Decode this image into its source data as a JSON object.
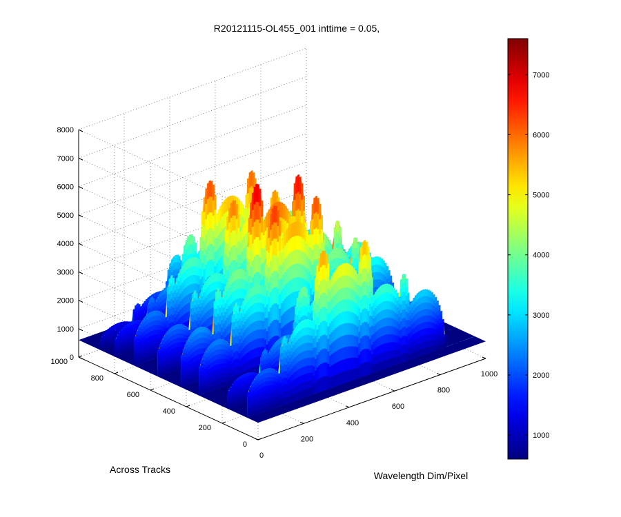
{
  "chart_data": {
    "type": "surface",
    "title": "R20121115-OL455_001 inttime = 0.05,",
    "xlabel": "Wavelength Dim/Pixel",
    "ylabel": "Across Tracks",
    "zlabel": "",
    "xlim": [
      0,
      1000
    ],
    "ylim": [
      0,
      1000
    ],
    "zlim": [
      0,
      8000
    ],
    "x_ticks": [
      "0",
      "200",
      "400",
      "600",
      "800",
      "1000"
    ],
    "y_ticks": [
      "0",
      "200",
      "400",
      "600",
      "800",
      "1000"
    ],
    "z_ticks": [
      "0",
      "1000",
      "2000",
      "3000",
      "4000",
      "5000",
      "6000",
      "7000",
      "8000"
    ],
    "colorbar": {
      "colormap": "jet",
      "range": [
        600,
        7600
      ],
      "ticks": [
        "1000",
        "2000",
        "3000",
        "4000",
        "5000",
        "6000",
        "7000"
      ]
    },
    "grid": true,
    "peaks_description": "Multiple dome-shaped spectral peaks along Wavelength, repeated at several across-track bands (~0, 100, 300, 400, 500, 700, 900); strongest dome near Wavelength ~400 reaching ~7500",
    "across_track_bands": [
      {
        "y": 60,
        "scale": 0.62
      },
      {
        "y": 170,
        "scale": 0.42
      },
      {
        "y": 330,
        "scale": 0.72
      },
      {
        "y": 430,
        "scale": 0.78
      },
      {
        "y": 560,
        "scale": 0.66
      },
      {
        "y": 690,
        "scale": 0.7
      },
      {
        "y": 800,
        "scale": 0.42
      },
      {
        "y": 880,
        "scale": 0.3
      }
    ],
    "spectral_peaks": [
      {
        "x": 80,
        "width": 95,
        "height": 3000
      },
      {
        "x": 250,
        "width": 110,
        "height": 5000
      },
      {
        "x": 420,
        "width": 130,
        "height": 7400
      },
      {
        "x": 600,
        "width": 110,
        "height": 5400
      },
      {
        "x": 770,
        "width": 100,
        "height": 4300
      }
    ]
  }
}
